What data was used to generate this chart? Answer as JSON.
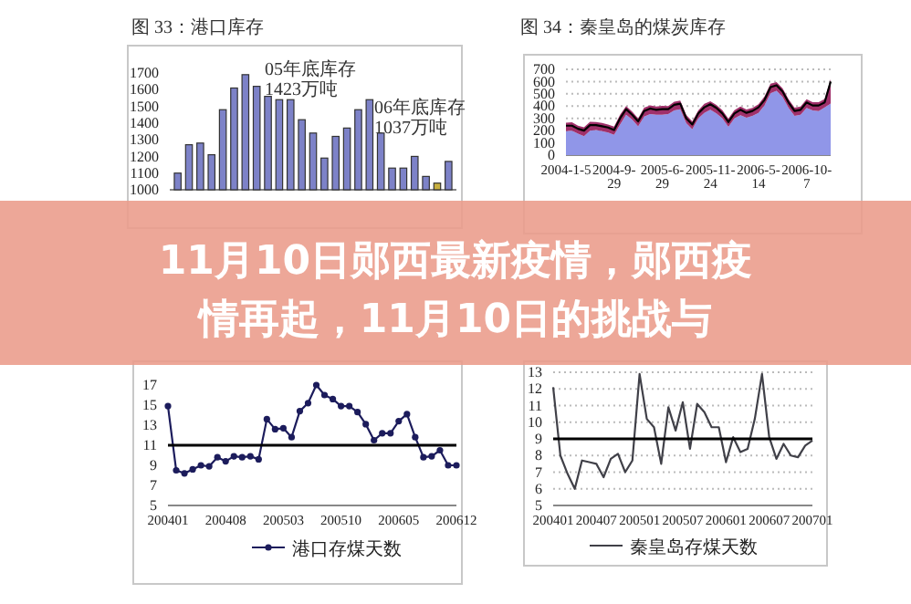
{
  "chart_data": [
    {
      "type": "bar",
      "title": "图 33：港口库存",
      "ylim": [
        1000,
        1700
      ],
      "yticks": [
        1000,
        1100,
        1200,
        1300,
        1400,
        1500,
        1600,
        1700
      ],
      "categories": [
        null,
        null,
        null,
        null,
        null,
        null,
        null,
        null,
        null,
        null,
        null,
        null,
        null,
        null,
        null,
        null,
        null,
        null,
        null,
        null,
        null,
        null,
        null,
        null,
        null
      ],
      "values": [
        1100,
        1270,
        1280,
        1210,
        1480,
        1610,
        1690,
        1620,
        1560,
        1540,
        1540,
        1420,
        1340,
        1190,
        1320,
        1370,
        1480,
        1540,
        1340,
        1130,
        1130,
        1200,
        1080,
        1040,
        1170
      ],
      "colors": [
        "#7d82c8",
        "#7d82c8",
        "#7d82c8",
        "#7d82c8",
        "#7d82c8",
        "#7d82c8",
        "#7d82c8",
        "#7d82c8",
        "#7d82c8",
        "#7d82c8",
        "#7d82c8",
        "#7d82c8",
        "#7d82c8",
        "#7d82c8",
        "#7d82c8",
        "#7d82c8",
        "#7d82c8",
        "#7d82c8",
        "#7d82c8",
        "#7d82c8",
        "#7d82c8",
        "#7d82c8",
        "#7d82c8",
        "#c8b040",
        "#7d82c8"
      ],
      "annotations": [
        "05年底库存 1423万吨",
        "06年底库存 1037万吨"
      ]
    },
    {
      "type": "area",
      "title": "图 34：秦皇岛的煤炭库存",
      "ylim": [
        0,
        700
      ],
      "yticks": [
        0,
        100,
        200,
        300,
        400,
        500,
        600,
        700
      ],
      "grid": "y",
      "categories": [
        "2004-1-5",
        null,
        null,
        null,
        null,
        null,
        null,
        null,
        "2004-9-29",
        null,
        null,
        null,
        null,
        null,
        null,
        null,
        "2005-6-29",
        null,
        null,
        null,
        null,
        null,
        null,
        null,
        "2005-11-24",
        null,
        null,
        null,
        null,
        null,
        null,
        null,
        "2006-5-14",
        null,
        null,
        null,
        null,
        null,
        null,
        null,
        "2006-10-7",
        null,
        null,
        null,
        null
      ],
      "series": [
        {
          "type": "area",
          "color": "#9096e8",
          "values": [
            195,
            200,
            175,
            155,
            200,
            205,
            195,
            185,
            165,
            250,
            330,
            290,
            235,
            315,
            335,
            330,
            330,
            335,
            365,
            375,
            260,
            210,
            300,
            345,
            370,
            340,
            300,
            230,
            300,
            325,
            305,
            320,
            345,
            405,
            505,
            525,
            475,
            385,
            320,
            330,
            385,
            365,
            360,
            390,
            420
          ]
        },
        {
          "type": "line",
          "color": "#000000",
          "values": [
            240,
            240,
            215,
            200,
            245,
            245,
            235,
            225,
            205,
            300,
            375,
            330,
            275,
            360,
            380,
            370,
            375,
            375,
            410,
            420,
            300,
            250,
            340,
            390,
            415,
            385,
            340,
            270,
            340,
            370,
            345,
            360,
            390,
            450,
            555,
            570,
            520,
            430,
            360,
            370,
            430,
            405,
            405,
            430,
            600
          ],
          "lower": [
            195,
            200,
            175,
            155,
            200,
            205,
            195,
            185,
            165,
            250,
            330,
            290,
            235,
            315,
            335,
            330,
            330,
            335,
            365,
            375,
            260,
            210,
            300,
            345,
            370,
            340,
            300,
            230,
            300,
            325,
            305,
            320,
            345,
            405,
            505,
            525,
            475,
            385,
            320,
            330,
            385,
            365,
            360,
            390,
            420
          ],
          "upper": [
            265,
            268,
            240,
            228,
            272,
            270,
            262,
            250,
            232,
            330,
            400,
            355,
            300,
            388,
            405,
            396,
            402,
            400,
            435,
            445,
            328,
            275,
            365,
            418,
            440,
            410,
            366,
            298,
            366,
            396,
            372,
            386,
            416,
            478,
            582,
            596,
            546,
            456,
            388,
            396,
            456,
            432,
            432,
            458,
            620
          ]
        }
      ]
    },
    {
      "type": "line",
      "ylim": [
        5,
        17
      ],
      "yticks": [
        5,
        7,
        9,
        11,
        13,
        15,
        17
      ],
      "marker": "circle",
      "legend": "bottom",
      "categories": [
        "200401",
        null,
        null,
        null,
        null,
        null,
        null,
        "200408",
        null,
        null,
        null,
        null,
        null,
        null,
        "200503",
        null,
        null,
        null,
        null,
        null,
        null,
        "200510",
        null,
        null,
        null,
        null,
        null,
        null,
        "200605",
        null,
        null,
        null,
        null,
        null,
        null,
        "200612"
      ],
      "series": [
        {
          "name": "港口存煤天数",
          "color": "#1c1c5c",
          "values": [
            14.9,
            8.5,
            8.2,
            8.6,
            9.0,
            8.9,
            9.8,
            9.4,
            9.9,
            9.8,
            9.9,
            9.6,
            13.6,
            12.6,
            12.7,
            11.8,
            14.4,
            15.2,
            17.0,
            16.0,
            15.6,
            14.9,
            14.9,
            14.3,
            13.1,
            11.5,
            12.2,
            12.2,
            13.4,
            14.1,
            11.8,
            9.8,
            9.9,
            10.5,
            9.0,
            9.0
          ]
        }
      ],
      "ref_lines": [
        {
          "axis": "y",
          "value": 11,
          "color": "#000000"
        }
      ]
    },
    {
      "type": "line",
      "ylim": [
        5,
        13
      ],
      "yticks": [
        5,
        6,
        7,
        8,
        9,
        10,
        11,
        12,
        13
      ],
      "grid": "y",
      "legend": "bottom",
      "categories": [
        "200401",
        null,
        null,
        null,
        null,
        null,
        "200407",
        null,
        null,
        null,
        null,
        null,
        "200501",
        null,
        null,
        null,
        null,
        null,
        "200507",
        null,
        null,
        null,
        null,
        null,
        "200601",
        null,
        null,
        null,
        null,
        null,
        "200607",
        null,
        null,
        null,
        null,
        null,
        "200701"
      ],
      "series": [
        {
          "name": "秦皇岛存煤天数",
          "color": "#404048",
          "values": [
            12.1,
            8.0,
            6.9,
            6.0,
            7.7,
            7.6,
            7.5,
            6.7,
            7.8,
            8.1,
            7.0,
            7.7,
            12.9,
            10.2,
            9.7,
            7.5,
            10.9,
            9.5,
            11.2,
            8.4,
            11.1,
            10.6,
            9.7,
            9.7,
            7.6,
            9.1,
            8.2,
            8.4,
            10.2,
            12.9,
            9.1,
            7.8,
            8.7,
            8.0,
            7.9,
            8.6,
            8.9
          ]
        }
      ],
      "ref_lines": [
        {
          "axis": "y",
          "value": 9,
          "color": "#000000"
        }
      ]
    },
    {
      "type": "other",
      "title": "11月10日郧西最新疫情，郧西疫情再起，11月10日的挑战与"
    }
  ]
}
